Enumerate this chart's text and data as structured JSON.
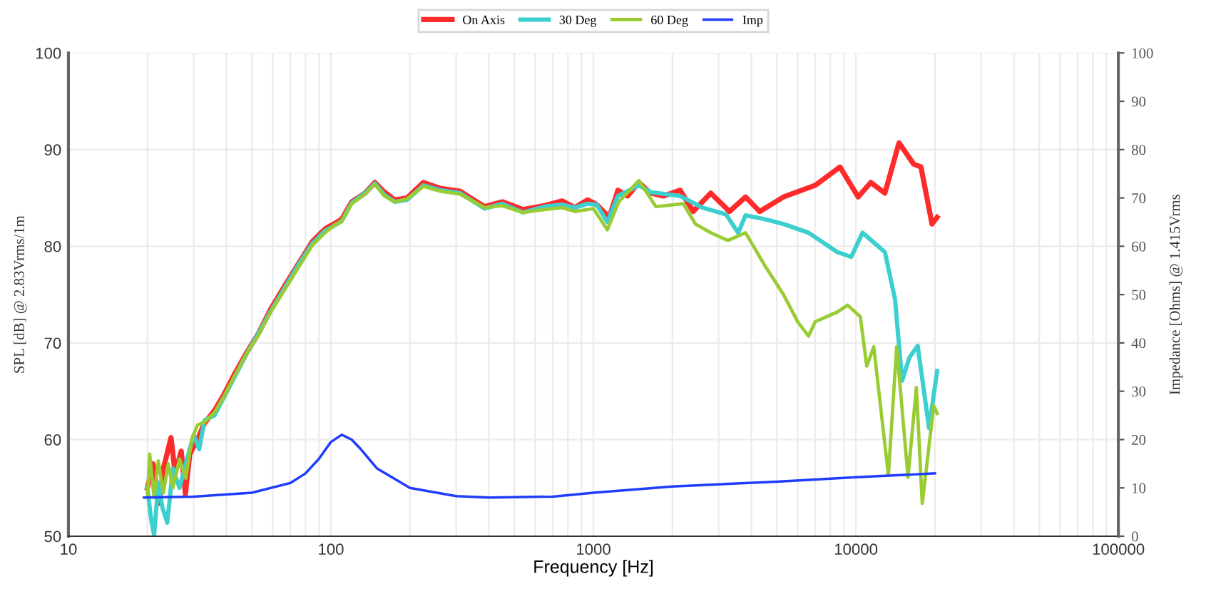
{
  "chart_data": {
    "type": "line",
    "xlabel": "Frequency [Hz]",
    "ylabel": "SPL [dB] @ 2.83Vrms/1m",
    "y2label": "Impedance [Ohms] @ 1.415Vrms",
    "log": "x",
    "grid": true,
    "legend": "top",
    "line_style": "solid",
    "marker": "none",
    "xlim": [
      10,
      100000
    ],
    "xticks": [
      10,
      100,
      1000,
      10000,
      100000
    ],
    "ylim": [
      50,
      100
    ],
    "yticks": [
      50,
      60,
      70,
      80,
      90,
      100
    ],
    "y2lim": [
      0,
      100
    ],
    "y2ticks": [
      0,
      10,
      20,
      30,
      40,
      50,
      60,
      70,
      80,
      90,
      100
    ],
    "series": [
      {
        "name": "On Axis",
        "color": "#ff2a2a",
        "x": [
          20,
          21,
          22.2,
          23,
          24.6,
          25.5,
          26.9,
          27.9,
          29,
          31,
          33,
          36,
          39,
          43,
          48,
          53,
          59,
          67,
          76,
          85,
          95,
          101,
          110,
          120,
          135,
          147,
          160,
          175,
          195,
          225,
          260,
          310,
          385,
          450,
          540,
          650,
          760,
          850,
          950,
          1030,
          1150,
          1240,
          1350,
          1490,
          1650,
          1850,
          2140,
          2400,
          2800,
          3300,
          3800,
          4300,
          5300,
          7000,
          8700,
          10200,
          11400,
          12900,
          14600,
          16600,
          17700,
          19500,
          20400
        ],
        "values": [
          55,
          57.5,
          53.4,
          57,
          60.2,
          56.5,
          58.8,
          54.4,
          58.5,
          60,
          61.7,
          63,
          64.6,
          66.8,
          69.1,
          71,
          73.5,
          76,
          78.4,
          80.5,
          81.8,
          82.2,
          82.8,
          84.6,
          85.5,
          86.6,
          85.6,
          84.8,
          85,
          86.6,
          86,
          85.7,
          84.1,
          84.6,
          83.8,
          84.2,
          84.7,
          84,
          84.8,
          84.3,
          83,
          85.8,
          85.2,
          86.6,
          85.5,
          85.2,
          85.8,
          83.6,
          85.5,
          83.6,
          85.1,
          83.6,
          85.1,
          86.3,
          88.2,
          85.1,
          86.6,
          85.5,
          90.7,
          88.5,
          88.2,
          82.3,
          83
        ]
      },
      {
        "name": "30 Deg",
        "color": "#3ccfcf",
        "x": [
          20,
          20.6,
          21.2,
          22,
          22.8,
          23.8,
          25,
          26.5,
          28,
          30,
          31.5,
          33,
          36,
          39,
          43,
          48,
          53,
          59,
          67,
          76,
          85,
          95,
          101,
          110,
          120,
          135,
          147,
          160,
          175,
          195,
          225,
          260,
          310,
          385,
          450,
          540,
          650,
          760,
          850,
          950,
          1030,
          1130,
          1240,
          1490,
          1650,
          2140,
          2600,
          3200,
          3560,
          3800,
          4500,
          5300,
          6600,
          8500,
          9600,
          10600,
          12900,
          14100,
          15000,
          16000,
          17200,
          19000,
          20400
        ],
        "values": [
          55,
          52,
          50.1,
          55.5,
          53,
          51.4,
          57,
          55,
          57.5,
          60.5,
          59,
          62,
          62.5,
          64.3,
          66.5,
          69,
          71,
          73.3,
          75.8,
          78.3,
          80.3,
          81.6,
          82,
          82.6,
          84.5,
          85.5,
          86.5,
          85.3,
          84.6,
          84.8,
          86.3,
          85.8,
          85.5,
          83.9,
          84.4,
          83.5,
          84.1,
          84.3,
          84,
          84.4,
          84.3,
          82.5,
          85.2,
          86.3,
          85.6,
          85.2,
          84,
          83.3,
          81.4,
          83.2,
          82.8,
          82.3,
          81.4,
          79.4,
          78.9,
          81.4,
          79.4,
          74.5,
          66.1,
          68.5,
          69.7,
          61.2,
          67.1
        ]
      },
      {
        "name": "60 Deg",
        "color": "#99cc33",
        "x": [
          20,
          20.4,
          21.2,
          22,
          23,
          24,
          25,
          26.5,
          28,
          29.5,
          31,
          33,
          36,
          39,
          43,
          48,
          53,
          59,
          67,
          76,
          85,
          95,
          101,
          110,
          120,
          135,
          147,
          160,
          175,
          195,
          225,
          260,
          310,
          385,
          450,
          540,
          650,
          760,
          850,
          1000,
          1130,
          1250,
          1490,
          1730,
          2200,
          2450,
          2800,
          3250,
          3800,
          4500,
          5300,
          6000,
          6600,
          7000,
          8500,
          9300,
          10400,
          11000,
          11700,
          13300,
          14300,
          15800,
          17000,
          17900,
          19800,
          20400
        ],
        "values": [
          54,
          58.5,
          54,
          57.8,
          54.5,
          57.5,
          55,
          58,
          56,
          60,
          61.5,
          61.8,
          62.8,
          64.4,
          66.6,
          69,
          70.8,
          73.2,
          75.6,
          78,
          80.1,
          81.4,
          82,
          82.6,
          84.4,
          85.4,
          86.4,
          85.2,
          84.6,
          84.9,
          86.2,
          85.7,
          85.4,
          84,
          84.2,
          83.5,
          83.8,
          84,
          83.6,
          83.9,
          81.7,
          84.6,
          86.8,
          84.1,
          84.4,
          82.3,
          81.4,
          80.6,
          81.4,
          78,
          75,
          72.2,
          70.7,
          72.2,
          73.2,
          73.9,
          72.7,
          67.6,
          69.6,
          56.3,
          69.6,
          56.1,
          65.4,
          53.4,
          63.5,
          62.7
        ]
      },
      {
        "name": "Imp",
        "color": "#1f3cff",
        "axis": "y2",
        "x": [
          19.4,
          30,
          50,
          70,
          80,
          90,
          100,
          110,
          120,
          130,
          150,
          200,
          300,
          400,
          700,
          1000,
          2000,
          5000,
          10000,
          20000
        ],
        "values": [
          8,
          8.2,
          9,
          11,
          13,
          16,
          19.5,
          21,
          20,
          18,
          14,
          10,
          8.3,
          8,
          8.2,
          9,
          10.3,
          11.3,
          12.2,
          13
        ]
      }
    ]
  }
}
